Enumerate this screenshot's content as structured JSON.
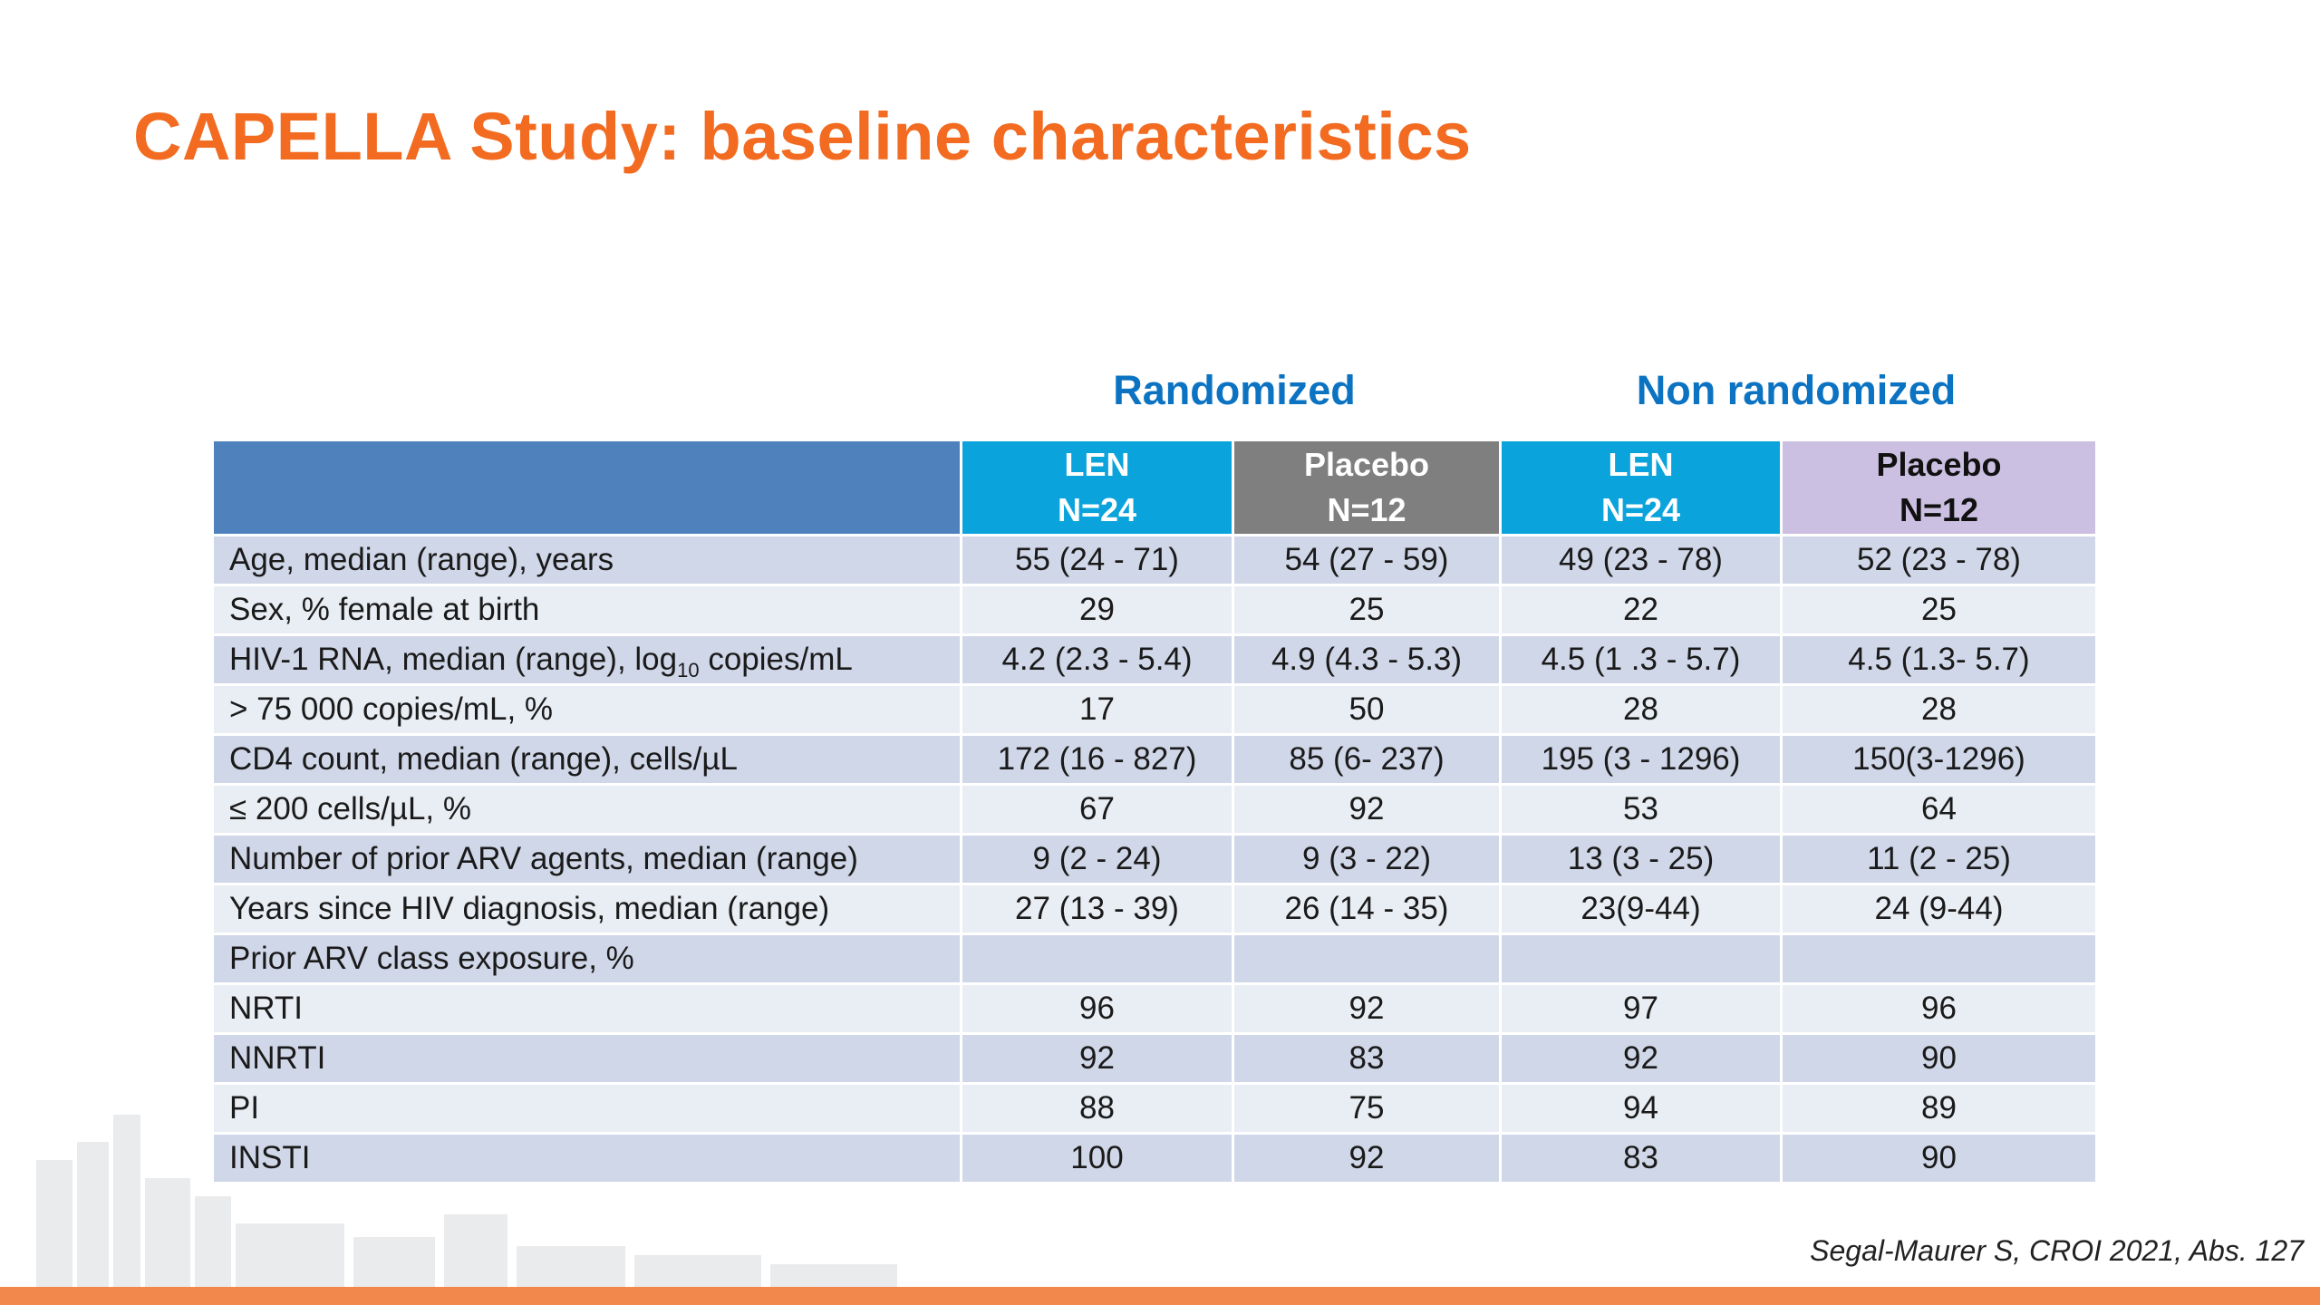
{
  "title": "CAPELLA Study: baseline characteristics",
  "group_headers": {
    "randomized": "Randomized",
    "non_randomized": "Non randomized"
  },
  "columns": [
    {
      "name": "LEN",
      "n": "N=24"
    },
    {
      "name": "Placebo",
      "n": "N=12"
    },
    {
      "name": "LEN",
      "n": "N=24"
    },
    {
      "name": "Placebo",
      "n": "N=12"
    }
  ],
  "rows": [
    {
      "label": "Age, median (range), years",
      "values": [
        "55 (24 - 71)",
        "54 (27 - 59)",
        "49 (23 - 78)",
        "52 (23 - 78)"
      ]
    },
    {
      "label": "Sex, % female at birth",
      "values": [
        "29",
        "25",
        "22",
        "25"
      ]
    },
    {
      "label_pre": "HIV-1 RNA, median (range), log",
      "label_sub": "10",
      "label_post": " copies/mL",
      "values": [
        "4.2 (2.3 - 5.4)",
        "4.9 (4.3 - 5.3)",
        "4.5 (1 .3 - 5.7)",
        "4.5 (1.3- 5.7)"
      ]
    },
    {
      "label": "> 75 000 copies/mL, %",
      "values": [
        "17",
        "50",
        "28",
        "28"
      ]
    },
    {
      "label": "CD4 count, median (range), cells/µL",
      "values": [
        "172 (16 - 827)",
        "85 (6- 237)",
        "195 (3 - 1296)",
        "150(3-1296)"
      ]
    },
    {
      "label": "≤ 200 cells/µL, %",
      "values": [
        "67",
        "92",
        "53",
        "64"
      ]
    },
    {
      "label": "Number of prior ARV agents, median (range)",
      "values": [
        "9 (2 - 24)",
        "9 (3 - 22)",
        "13 (3 - 25)",
        "11 (2 - 25)"
      ]
    },
    {
      "label": "Years since HIV diagnosis, median (range)",
      "values": [
        "27 (13 - 39)",
        "26 (14 - 35)",
        "23(9-44)",
        "24 (9-44)"
      ]
    },
    {
      "label": "Prior ARV class exposure, %",
      "values": [
        "",
        "",
        "",
        ""
      ]
    },
    {
      "label": "NRTI",
      "values": [
        "96",
        "92",
        "97",
        "96"
      ]
    },
    {
      "label": "NNRTI",
      "values": [
        "92",
        "83",
        "92",
        "90"
      ]
    },
    {
      "label": "PI",
      "values": [
        "88",
        "75",
        "94",
        "89"
      ]
    },
    {
      "label": "INSTI",
      "values": [
        "100",
        "92",
        "83",
        "90"
      ]
    }
  ],
  "citation": "Segal-Maurer S, CROI 2021, Abs. 127",
  "colors": {
    "title": "#f26b21",
    "group_header": "#0b73c2",
    "corner_header": "#4f81bd",
    "len_header": "#0aa3dc",
    "placebo_randomized_header": "#7f7f7f",
    "placebo_nonrandomized_header": "#ccc0e2",
    "row_dark": "#d0d7e8",
    "row_light": "#e9edf4",
    "bottom_bar": "#f2884b"
  }
}
